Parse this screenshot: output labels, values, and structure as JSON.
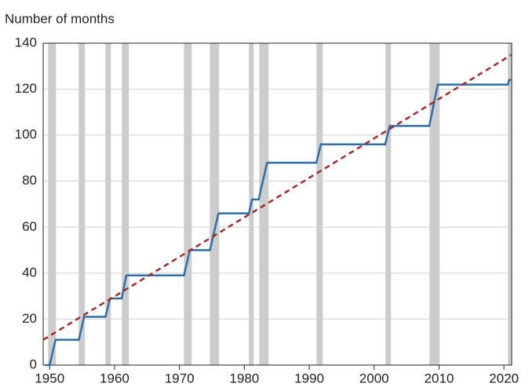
{
  "chart_data": {
    "type": "line",
    "y_label": "Number of months",
    "xlim": [
      1949,
      2021.2
    ],
    "xticks": [
      1950,
      1960,
      1970,
      1980,
      1990,
      2000,
      2010,
      2020
    ],
    "ylim": [
      0,
      140
    ],
    "yticks": [
      0,
      20,
      40,
      60,
      80,
      100,
      120,
      140
    ],
    "grid": true,
    "shade_color": "#cccccc",
    "shaded_ranges": [
      [
        1949.76,
        1950.97
      ],
      [
        1954.47,
        1955.44
      ],
      [
        1958.59,
        1959.43
      ],
      [
        1961.12,
        1962.21
      ],
      [
        1970.68,
        1971.89
      ],
      [
        1974.67,
        1976.12
      ],
      [
        1980.71,
        1981.44
      ],
      [
        1982.29,
        1983.74
      ],
      [
        1991.11,
        1992.08
      ],
      [
        2001.75,
        2002.6
      ],
      [
        2008.52,
        2010.09
      ],
      [
        2020.6,
        2021.2
      ]
    ],
    "series": [
      {
        "color": "#2f6fa8",
        "dashed": false,
        "x": [
          1949.3,
          1950.0,
          1950.9,
          1954.5,
          1955.3,
          1958.6,
          1959.3,
          1961.1,
          1961.8,
          1970.7,
          1971.6,
          1974.7,
          1976.0,
          1980.7,
          1981.2,
          1982.2,
          1983.5,
          1991.1,
          1991.8,
          2001.7,
          2002.4,
          2008.5,
          2009.8,
          2020.6,
          2020.8,
          2021.2
        ],
        "values": [
          0,
          0,
          11,
          11,
          21,
          21,
          29,
          29,
          39,
          39,
          50,
          50,
          66,
          66,
          72,
          72,
          88,
          88,
          96,
          96,
          104,
          104,
          122,
          122,
          124,
          124
        ]
      },
      {
        "color": "#a52a2a",
        "dashed": true,
        "x": [
          1949,
          2021.2
        ],
        "values": [
          11,
          135
        ]
      }
    ]
  }
}
